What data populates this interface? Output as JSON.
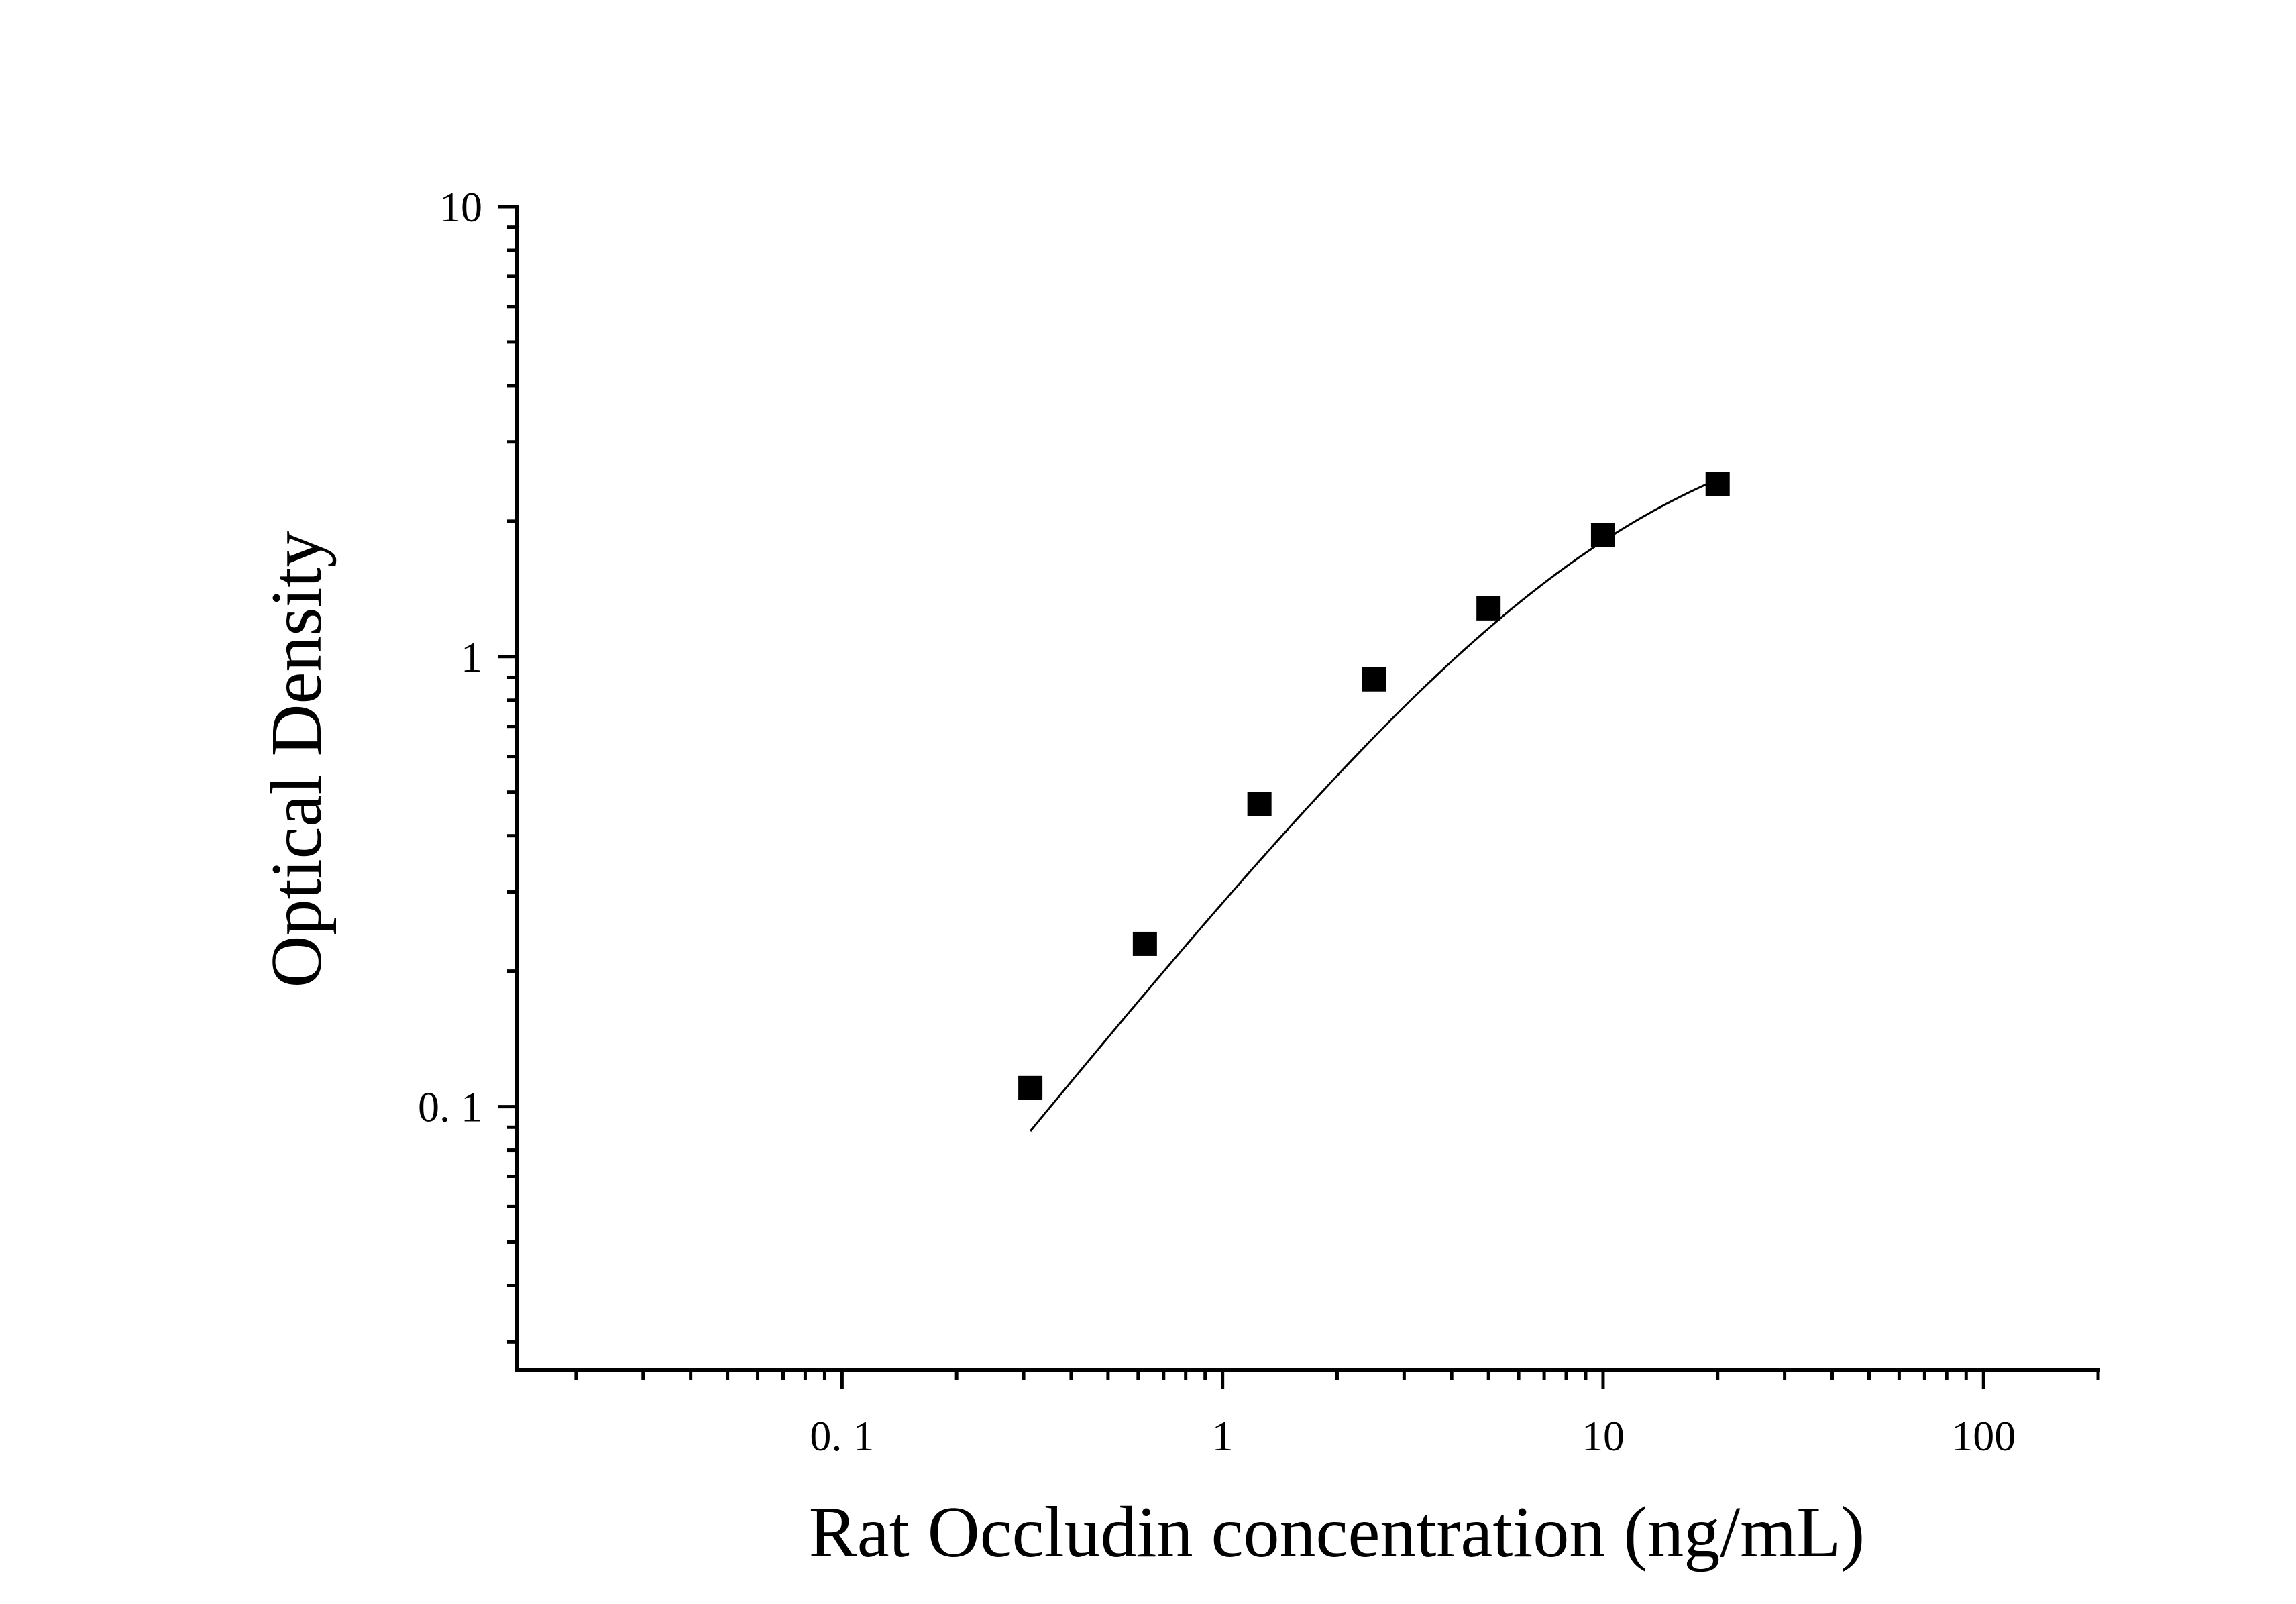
{
  "chart_data": {
    "type": "scatter",
    "xlabel": "Rat Occludin concentration (ng/mL)",
    "ylabel": "Optical Density",
    "x_scale": "log",
    "y_scale": "log",
    "xlim": [
      0.014,
      200
    ],
    "ylim": [
      0.026,
      10
    ],
    "x_ticks": [
      {
        "value": 0.1,
        "label": "0. 1"
      },
      {
        "value": 1,
        "label": "1"
      },
      {
        "value": 10,
        "label": "10"
      },
      {
        "value": 100,
        "label": "100"
      }
    ],
    "y_ticks": [
      {
        "value": 0.1,
        "label": "0. 1"
      },
      {
        "value": 1,
        "label": "1"
      },
      {
        "value": 10,
        "label": "10"
      }
    ],
    "grid": false,
    "legend": "none",
    "series": [
      {
        "marker": "square",
        "color": "#000000",
        "points": [
          {
            "x": 0.3125,
            "y": 0.11
          },
          {
            "x": 0.625,
            "y": 0.23
          },
          {
            "x": 1.25,
            "y": 0.47
          },
          {
            "x": 2.5,
            "y": 0.89
          },
          {
            "x": 5,
            "y": 1.28
          },
          {
            "x": 10,
            "y": 1.86
          },
          {
            "x": 20,
            "y": 2.42
          }
        ]
      }
    ],
    "fit_curve": {
      "model": "4PL",
      "color": "#000000",
      "x_range": [
        0.3125,
        20
      ],
      "params": {
        "A": 0.0,
        "B": 1.05,
        "C": 11.0,
        "D": 3.8
      }
    }
  }
}
